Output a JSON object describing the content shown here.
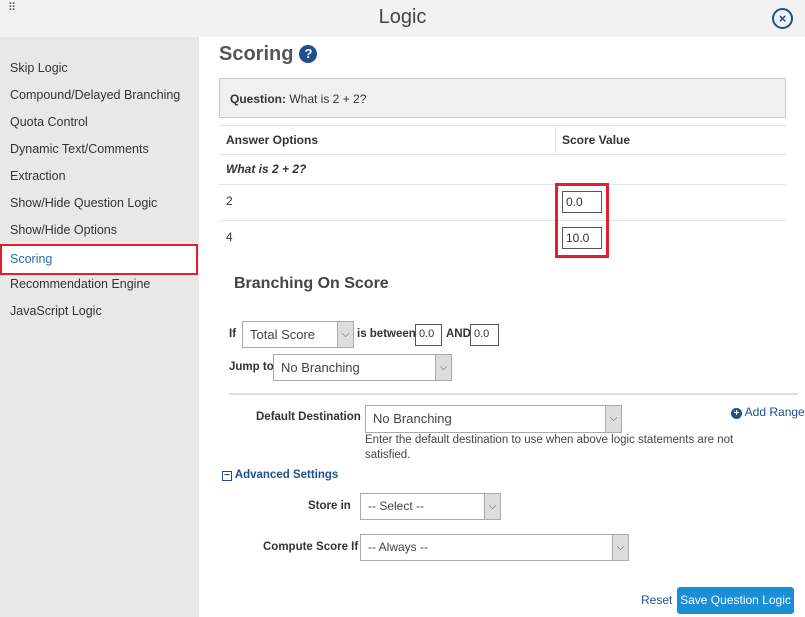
{
  "header": {
    "title": "Logic",
    "grip_icon": "drag-grip-icon",
    "close_icon": "close-icon"
  },
  "sidebar": {
    "items": [
      {
        "label": "Skip Logic"
      },
      {
        "label": "Compound/Delayed Branching"
      },
      {
        "label": "Quota Control"
      },
      {
        "label": "Dynamic Text/Comments"
      },
      {
        "label": "Extraction"
      },
      {
        "label": "Show/Hide Question Logic"
      },
      {
        "label": "Show/Hide Options"
      },
      {
        "label": "Scoring",
        "active": true
      },
      {
        "label": "Recommendation Engine"
      },
      {
        "label": "JavaScript Logic"
      }
    ]
  },
  "main": {
    "title": "Scoring",
    "help_icon": "?",
    "question_label": "Question:",
    "question_text": "What is 2 + 2?",
    "table": {
      "headers": [
        "Answer Options",
        "Score Value"
      ],
      "group": "What is 2 + 2?",
      "rows": [
        {
          "option": "2",
          "score": "0.0"
        },
        {
          "option": "4",
          "score": "10.0"
        }
      ]
    },
    "branching": {
      "title": "Branching On Score",
      "if_label": "If",
      "if_select": "Total Score",
      "between_label": "is between",
      "from": "0.0",
      "and_label": "AND",
      "to": "0.0",
      "jump_label": "Jump to",
      "jump_select": "No Branching"
    },
    "add_range": "Add Range",
    "default_destination": {
      "label": "Default Destination",
      "value": "No Branching",
      "help": "Enter the default destination to use when above logic statements are not satisfied."
    },
    "advanced": {
      "label": "Advanced Settings",
      "store_label": "Store in",
      "store_value": "-- Select --",
      "compute_label": "Compute Score If",
      "compute_value": "-- Always --"
    },
    "reset": "Reset",
    "save": "Save Question Logic"
  },
  "colors": {
    "accent": "#1f4f8c",
    "save_button": "#1a8fd8",
    "highlight": "#e0202a"
  }
}
